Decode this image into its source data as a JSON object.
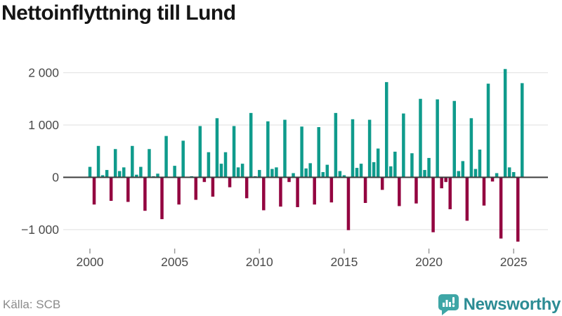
{
  "title": "Nettoinflyttning till Lund",
  "footer": {
    "source": "Källa: SCB",
    "brand_name": "Newsworthy"
  },
  "colors": {
    "positive_bar": "#0f9b8c",
    "negative_bar": "#930440",
    "grid": "#e5e5e5",
    "zero_line": "#3d3d3d",
    "axis_text": "#4a4a4a",
    "title_text": "#151515",
    "source_text": "#8b8b8b",
    "brand_text": "#2c8c94",
    "brand_icon": "#3ea6a6"
  },
  "chart_data": {
    "type": "bar",
    "title": "Nettoinflyttning till Lund",
    "xlabel": "",
    "ylabel": "",
    "frequency": "quarterly",
    "start": "2000-Q1",
    "end": "2025-Q3",
    "grid": true,
    "legend": false,
    "ylim": [
      -1350,
      2250
    ],
    "yticks": [
      -1000,
      0,
      1000,
      2000
    ],
    "y_tick_labels": [
      "−1 000",
      "0",
      "1 000",
      "2 000"
    ],
    "xtick_years": [
      2000,
      2005,
      2010,
      2015,
      2020,
      2025
    ],
    "x_tick_labels": [
      "2000",
      "2005",
      "2010",
      "2015",
      "2020",
      "2025"
    ],
    "series": [
      {
        "name": "Nettoinflyttning",
        "years": [
          {
            "year": 2000,
            "values": [
              200,
              -520,
              600,
              40
            ]
          },
          {
            "year": 2001,
            "values": [
              140,
              -450,
              540,
              120
            ]
          },
          {
            "year": 2002,
            "values": [
              190,
              -470,
              600,
              50
            ]
          },
          {
            "year": 2003,
            "values": [
              200,
              -640,
              540,
              20
            ]
          },
          {
            "year": 2004,
            "values": [
              70,
              -800,
              790,
              10
            ]
          },
          {
            "year": 2005,
            "values": [
              220,
              -520,
              700,
              10
            ]
          },
          {
            "year": 2006,
            "values": [
              20,
              -430,
              980,
              -90
            ]
          },
          {
            "year": 2007,
            "values": [
              480,
              -370,
              1130,
              260
            ]
          },
          {
            "year": 2008,
            "values": [
              480,
              -190,
              980,
              190
            ]
          },
          {
            "year": 2009,
            "values": [
              260,
              -400,
              1230,
              20
            ]
          },
          {
            "year": 2010,
            "values": [
              140,
              -630,
              1070,
              160
            ]
          },
          {
            "year": 2011,
            "values": [
              190,
              -560,
              1100,
              -90
            ]
          },
          {
            "year": 2012,
            "values": [
              80,
              -570,
              970,
              170
            ]
          },
          {
            "year": 2013,
            "values": [
              270,
              -520,
              960,
              100
            ]
          },
          {
            "year": 2014,
            "values": [
              240,
              -480,
              1230,
              120
            ]
          },
          {
            "year": 2015,
            "values": [
              40,
              -1010,
              1110,
              180
            ]
          },
          {
            "year": 2016,
            "values": [
              260,
              -490,
              1100,
              290
            ]
          },
          {
            "year": 2017,
            "values": [
              550,
              -240,
              1820,
              210
            ]
          },
          {
            "year": 2018,
            "values": [
              490,
              -550,
              1220,
              10
            ]
          },
          {
            "year": 2019,
            "values": [
              460,
              -500,
              1500,
              140
            ]
          },
          {
            "year": 2020,
            "values": [
              370,
              -1050,
              1490,
              -210
            ]
          },
          {
            "year": 2021,
            "values": [
              -90,
              -610,
              1460,
              120
            ]
          },
          {
            "year": 2022,
            "values": [
              310,
              -830,
              1130,
              160
            ]
          },
          {
            "year": 2023,
            "values": [
              530,
              -540,
              1790,
              -80
            ]
          },
          {
            "year": 2024,
            "values": [
              80,
              -1170,
              2070,
              190
            ]
          },
          {
            "year": 2025,
            "values": [
              100,
              -1230,
              1800
            ]
          }
        ]
      }
    ]
  }
}
